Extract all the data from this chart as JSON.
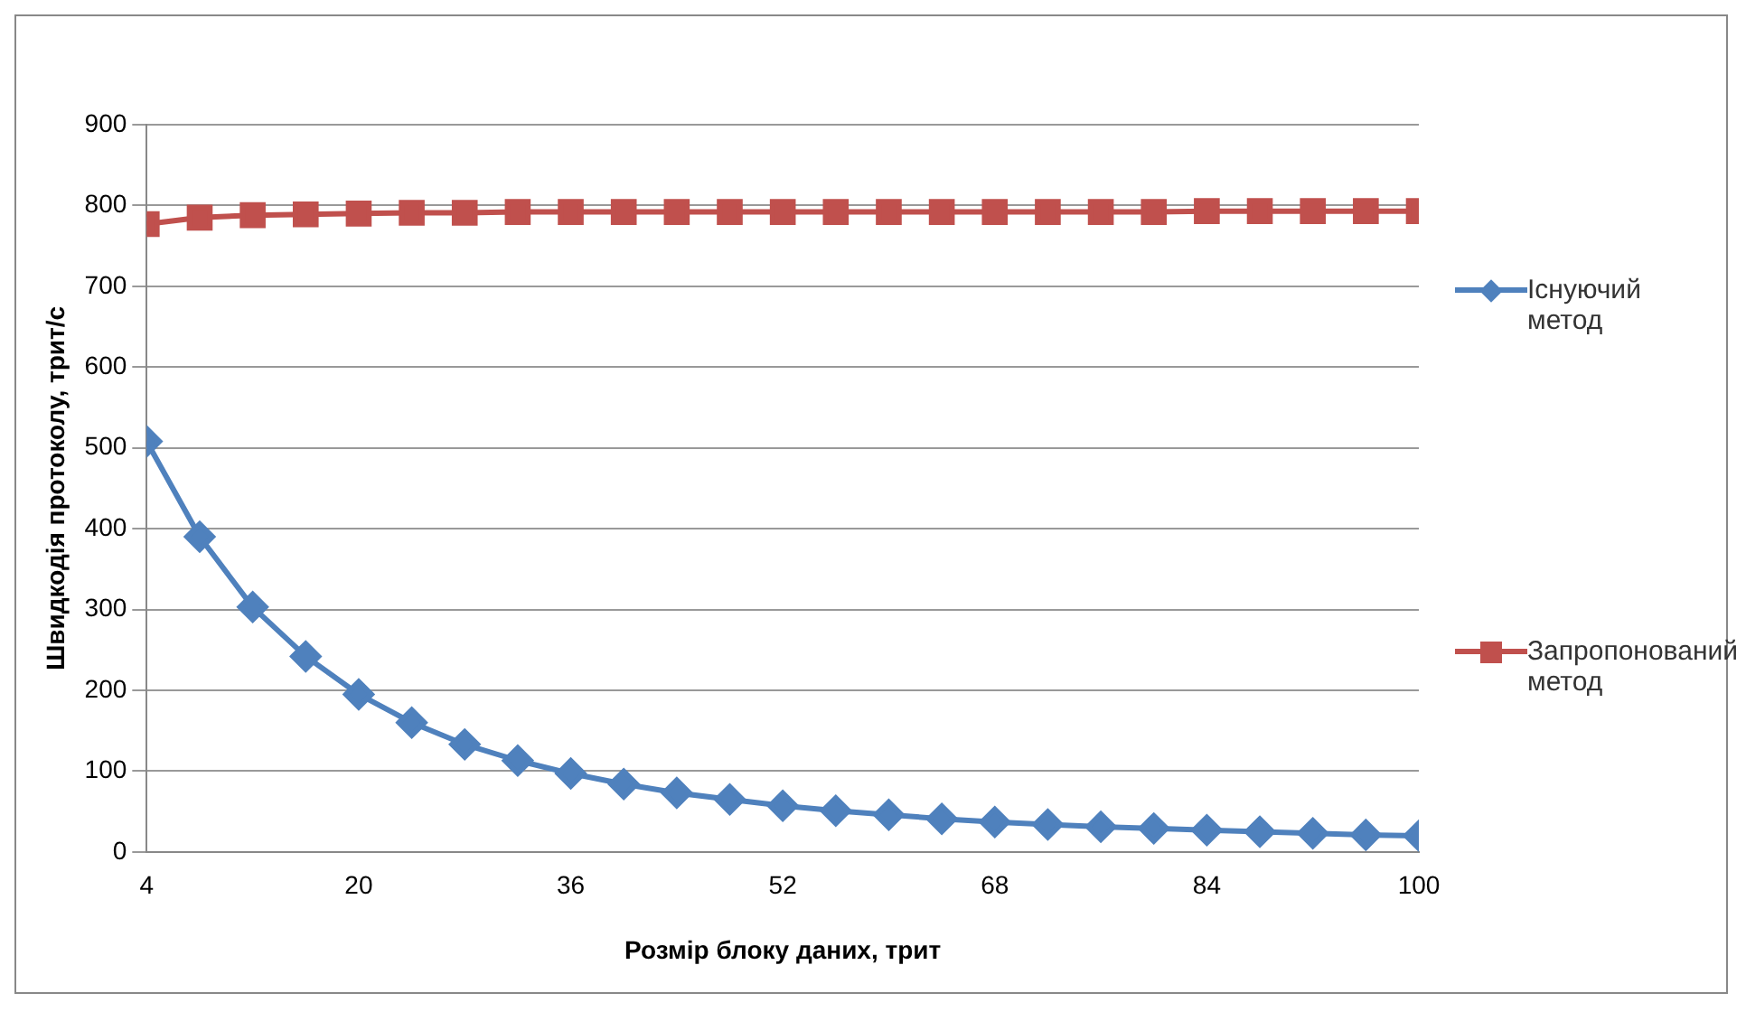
{
  "chart_data": {
    "type": "line",
    "xlabel": "Розмір блоку даних, трит",
    "ylabel": "Швидкодія протоколу, трит/с",
    "x": [
      4,
      8,
      12,
      16,
      20,
      24,
      28,
      32,
      36,
      40,
      44,
      48,
      52,
      56,
      60,
      64,
      68,
      72,
      76,
      80,
      84,
      88,
      92,
      96,
      100
    ],
    "series": [
      {
        "name": "Існуючий метод",
        "color": "#4f81bd",
        "marker": "diamond",
        "values": [
          508,
          390,
          303,
          242,
          195,
          160,
          133,
          113,
          97,
          84,
          73,
          65,
          57,
          51,
          46,
          41,
          37,
          34,
          31,
          29,
          27,
          25,
          23,
          21,
          20
        ]
      },
      {
        "name": "Запропонований метод",
        "color": "#c0504d",
        "marker": "square",
        "values": [
          777,
          785,
          788,
          789,
          790,
          791,
          791,
          792,
          792,
          792,
          792,
          792,
          792,
          792,
          792,
          792,
          792,
          792,
          792,
          792,
          793,
          793,
          793,
          793,
          793
        ]
      }
    ],
    "xlim": [
      4,
      100
    ],
    "xticks": [
      4,
      20,
      36,
      52,
      68,
      84,
      100
    ],
    "ylim": [
      0,
      900
    ],
    "yticks": [
      0,
      100,
      200,
      300,
      400,
      500,
      600,
      700,
      800,
      900
    ],
    "grid": "y",
    "legend": "right"
  }
}
